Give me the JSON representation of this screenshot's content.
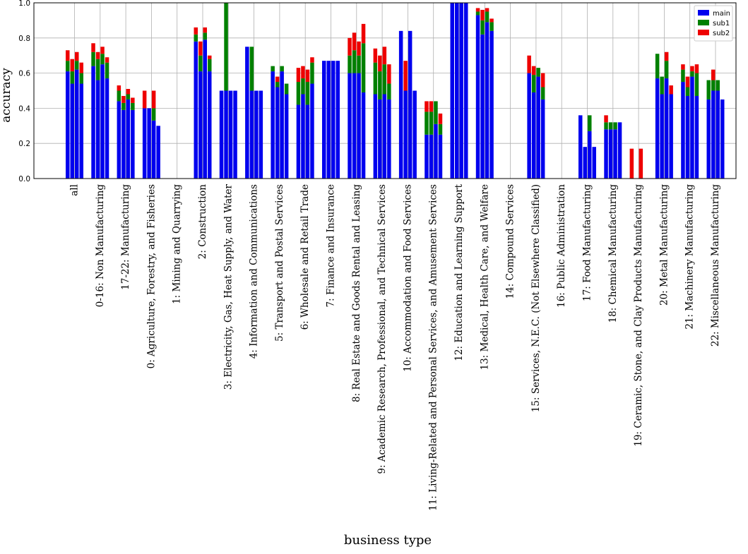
{
  "chart_data": {
    "type": "bar",
    "stacked": true,
    "xlabel": "business type",
    "ylabel": "accuracy",
    "ylim": [
      0,
      1.0
    ],
    "yticks": [
      "0.0",
      "0.2",
      "0.4",
      "0.6",
      "0.8",
      "1.0"
    ],
    "grid": true,
    "legend_placement": "top-right",
    "colors": {
      "main": "#0000ee",
      "sub1": "#008000",
      "sub2": "#ee0000"
    },
    "series_names": [
      "main",
      "sub1",
      "sub2"
    ],
    "categories": [
      "all",
      "0-16: Non Manufacturing",
      "17-22: Manufacturing",
      "0: Agriculture, Forestry, and Fisheries",
      "1: Mining and Quarrying",
      "2: Construction",
      "3: Electricity, Gas, Heat Supply, and Water",
      "4: Information and Communications",
      "5: Transport and Postal Services",
      "6: Wholesale and Retail Trade",
      "7: Finance and Insurance",
      "8: Real Estate and Goods Rental and Leasing",
      "9: Academic Research, Professional, and Technical Services",
      "10: Accommodation and Food Services",
      "11: Living-Related and Personal Services, and Amusement Services",
      "12: Education and Learning Support",
      "13: Medical, Health Care, and Welfare",
      "14: Compound Services",
      "15: Services, N.E.C. (Not Elsewhere Classified)",
      "16: Public Administration",
      "17: Food Manufacturing",
      "18: Chemical Manufacturing",
      "19: Ceramic, Stone, and Clay Products Manufacturing",
      "20: Metal Manufacturing",
      "21: Machinery Manufacturing",
      "22: Miscellaneous Manufacturing"
    ],
    "groups": [
      [
        [
          0.61,
          0.06,
          0.06
        ],
        [
          0.54,
          0.07,
          0.07
        ],
        [
          0.62,
          0.05,
          0.05
        ],
        [
          0.54,
          0.06,
          0.06
        ]
      ],
      [
        [
          0.64,
          0.08,
          0.05
        ],
        [
          0.56,
          0.12,
          0.04
        ],
        [
          0.65,
          0.06,
          0.04
        ],
        [
          0.57,
          0.09,
          0.03
        ]
      ],
      [
        [
          0.44,
          0.06,
          0.03
        ],
        [
          0.39,
          0.04,
          0.04
        ],
        [
          0.45,
          0.03,
          0.03
        ],
        [
          0.39,
          0.04,
          0.03
        ]
      ],
      [
        [
          0.4,
          0.0,
          0.1
        ],
        [
          0.4,
          0.0,
          0.0
        ],
        [
          0.33,
          0.07,
          0.1
        ],
        [
          0.3,
          0.0,
          0.0
        ]
      ],
      [
        [
          0,
          0,
          0
        ],
        [
          0,
          0,
          0
        ],
        [
          0,
          0,
          0
        ],
        [
          0,
          0,
          0
        ]
      ],
      [
        [
          0.78,
          0.04,
          0.04
        ],
        [
          0.61,
          0.09,
          0.08
        ],
        [
          0.79,
          0.04,
          0.03
        ],
        [
          0.61,
          0.07,
          0.02
        ]
      ],
      [
        [
          0.5,
          0.0,
          0.0
        ],
        [
          0.5,
          0.5,
          0.0
        ],
        [
          0.5,
          0.0,
          0.0
        ],
        [
          0.5,
          0.0,
          0.0
        ]
      ],
      [
        [
          0.75,
          0.0,
          0.0
        ],
        [
          0.5,
          0.25,
          0.0
        ],
        [
          0.5,
          0.0,
          0.0
        ],
        [
          0.5,
          0.0,
          0.0
        ]
      ],
      [
        [
          0.61,
          0.03,
          0.0
        ],
        [
          0.52,
          0.03,
          0.03
        ],
        [
          0.61,
          0.03,
          0.0
        ],
        [
          0.48,
          0.06,
          0.0
        ]
      ],
      [
        [
          0.42,
          0.13,
          0.08
        ],
        [
          0.48,
          0.09,
          0.07
        ],
        [
          0.42,
          0.13,
          0.07
        ],
        [
          0.54,
          0.12,
          0.03
        ]
      ],
      [
        [
          0.67,
          0.0,
          0.0
        ],
        [
          0.67,
          0.0,
          0.0
        ],
        [
          0.67,
          0.0,
          0.0
        ],
        [
          0.67,
          0.0,
          0.0
        ]
      ],
      [
        [
          0.6,
          0.1,
          0.1
        ],
        [
          0.6,
          0.13,
          0.1
        ],
        [
          0.6,
          0.1,
          0.08
        ],
        [
          0.49,
          0.28,
          0.11
        ]
      ],
      [
        [
          0.48,
          0.18,
          0.08
        ],
        [
          0.45,
          0.16,
          0.09
        ],
        [
          0.48,
          0.17,
          0.1
        ],
        [
          0.45,
          0.09,
          0.11
        ]
      ],
      [
        [
          0.84,
          0.0,
          0.0
        ],
        [
          0.5,
          0.0,
          0.17
        ],
        [
          0.84,
          0.0,
          0.0
        ],
        [
          0.5,
          0.0,
          0.0
        ]
      ],
      [
        [
          0.25,
          0.13,
          0.06
        ],
        [
          0.25,
          0.13,
          0.06
        ],
        [
          0.31,
          0.13,
          0.0
        ],
        [
          0.25,
          0.06,
          0.06
        ]
      ],
      [
        [
          1.0,
          0.0,
          0.0
        ],
        [
          1.0,
          0.0,
          0.0
        ],
        [
          1.0,
          0.0,
          0.0
        ],
        [
          1.0,
          0.0,
          0.0
        ]
      ],
      [
        [
          0.93,
          0.02,
          0.02
        ],
        [
          0.82,
          0.08,
          0.06
        ],
        [
          0.89,
          0.06,
          0.02
        ],
        [
          0.84,
          0.05,
          0.02
        ]
      ],
      [
        [
          0,
          0,
          0
        ],
        [
          0,
          0,
          0
        ],
        [
          0,
          0,
          0
        ],
        [
          0,
          0,
          0
        ]
      ],
      [
        [
          0.6,
          0.0,
          0.1
        ],
        [
          0.49,
          0.1,
          0.05
        ],
        [
          0.58,
          0.05,
          0.0
        ],
        [
          0.45,
          0.07,
          0.08
        ]
      ],
      [
        [
          0,
          0,
          0
        ],
        [
          0,
          0,
          0
        ],
        [
          0,
          0,
          0
        ],
        [
          0,
          0,
          0
        ]
      ],
      [
        [
          0.36,
          0.0,
          0.0
        ],
        [
          0.18,
          0.0,
          0.0
        ],
        [
          0.27,
          0.09,
          0.0
        ],
        [
          0.18,
          0.0,
          0.0
        ]
      ],
      [
        [
          0.28,
          0.04,
          0.04
        ],
        [
          0.28,
          0.04,
          0.0
        ],
        [
          0.28,
          0.04,
          0.0
        ],
        [
          0.32,
          0.0,
          0.0
        ]
      ],
      [
        [
          0.0,
          0.0,
          0.17
        ],
        [
          0.0,
          0.0,
          0.0
        ],
        [
          0.0,
          0.0,
          0.17
        ],
        [
          0.0,
          0.0,
          0.0
        ]
      ],
      [
        [
          0.57,
          0.14,
          0.0
        ],
        [
          0.48,
          0.1,
          0.0
        ],
        [
          0.57,
          0.1,
          0.05
        ],
        [
          0.48,
          0.0,
          0.05
        ]
      ],
      [
        [
          0.55,
          0.07,
          0.03
        ],
        [
          0.47,
          0.05,
          0.06
        ],
        [
          0.58,
          0.03,
          0.03
        ],
        [
          0.47,
          0.13,
          0.05
        ]
      ],
      [
        [
          0.45,
          0.11,
          0.0
        ],
        [
          0.5,
          0.06,
          0.06
        ],
        [
          0.5,
          0.06,
          0.0
        ],
        [
          0.45,
          0.0,
          0.0
        ]
      ]
    ]
  }
}
